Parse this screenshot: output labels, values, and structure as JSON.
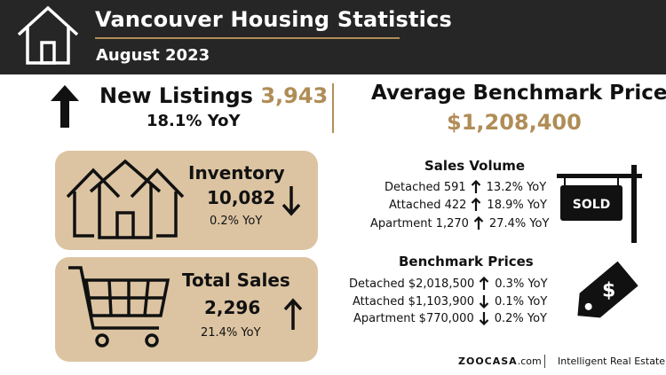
{
  "header": {
    "title": "Vancouver Housing Statistics",
    "subtitle": "August 2023",
    "icon": "house-icon"
  },
  "new_listings": {
    "label": "New Listings",
    "value": "3,943",
    "yoy": "18.1% YoY",
    "direction": "up"
  },
  "average_benchmark": {
    "label": "Average Benchmark Price",
    "value": "$1,208,400"
  },
  "inventory": {
    "label": "Inventory",
    "value": "10,082",
    "yoy": "0.2% YoY",
    "direction": "down"
  },
  "total_sales": {
    "label": "Total Sales",
    "value": "2,296",
    "yoy": "21.4% YoY",
    "direction": "up"
  },
  "sales_volume": {
    "title": "Sales Volume",
    "rows": [
      {
        "label": "Detached 591",
        "yoy": "13.2% YoY",
        "direction": "up"
      },
      {
        "label": "Attached 422",
        "yoy": "18.9% YoY",
        "direction": "up"
      },
      {
        "label": "Apartment 1,270",
        "yoy": "27.4% YoY",
        "direction": "up"
      }
    ]
  },
  "benchmark_prices": {
    "title": "Benchmark Prices",
    "rows": [
      {
        "label": "Detached $2,018,500",
        "yoy": "0.3% YoY",
        "direction": "up"
      },
      {
        "label": "Attached $1,103,900",
        "yoy": "0.1% YoY",
        "direction": "down"
      },
      {
        "label": "Apartment $770,000",
        "yoy": "0.2% YoY",
        "direction": "down"
      }
    ]
  },
  "sold_sign": {
    "text": "SOLD",
    "icon": "sold-sign-icon"
  },
  "price_tag": {
    "icon": "price-tag-icon"
  },
  "footer": {
    "brand": "ZOOCASA",
    "brand_suffix": ".com",
    "tagline": "Intelligent Real Estate"
  },
  "colors": {
    "header_bg": "#262626",
    "accent_gold": "#b08d57",
    "card_bg": "#dcc4a2"
  }
}
